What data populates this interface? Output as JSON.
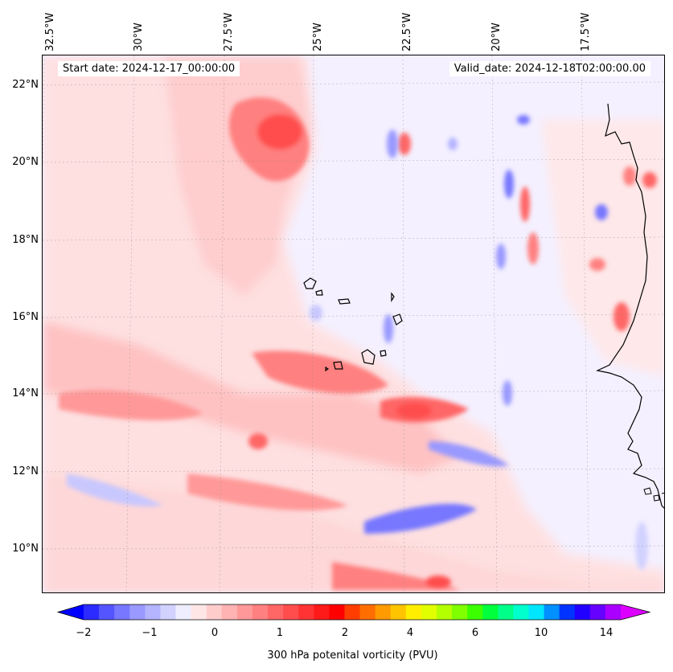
{
  "map": {
    "start_date": "Start date: 2024-12-17_00:00:00",
    "valid_date": "Valid_date: 2024-12-18T02:00:00.00",
    "lon_labels": [
      "32.5°W",
      "30°W",
      "27.5°W",
      "25°W",
      "22.5°W",
      "20°W",
      "17.5°W"
    ],
    "lat_labels": [
      "22°N",
      "20°N",
      "18°N",
      "16°N",
      "14°N",
      "12°N",
      "10°N"
    ],
    "colorbar": {
      "label": "300 hPa potenital vorticity (PVU)",
      "tick_labels": [
        "−2",
        "−1",
        "0",
        "1",
        "2",
        "4",
        "6",
        "10",
        "14"
      ],
      "colors": [
        "#0000ff",
        "#2b2bff",
        "#5555ff",
        "#7777ff",
        "#9999ff",
        "#b4b4ff",
        "#d2d2ff",
        "#eeeeff",
        "#ffe6e6",
        "#ffcccc",
        "#ffb3b3",
        "#ff9999",
        "#ff8080",
        "#ff6666",
        "#ff4d4d",
        "#ff3333",
        "#ff1a1a",
        "#ff0000",
        "#ff3d00",
        "#ff6e00",
        "#ff9a00",
        "#ffc400",
        "#ffee00",
        "#e2ff00",
        "#b4ff00",
        "#7fff00",
        "#3cff00",
        "#00ff3c",
        "#00ff88",
        "#00ffcc",
        "#00e6ff",
        "#0090ff",
        "#0033ff",
        "#2200ff",
        "#6600ff",
        "#aa00ff",
        "#dd00ff"
      ]
    },
    "colors": {
      "negative": "#7777ff",
      "positive_strong": "#ff3333",
      "positive_weak": "#ffcccc",
      "coastline": "#000000"
    }
  }
}
